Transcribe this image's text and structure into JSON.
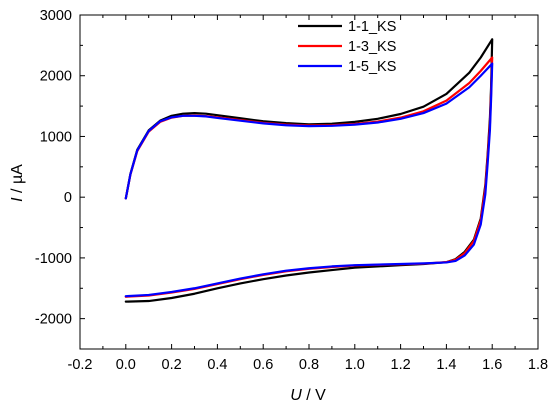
{
  "chart_data": {
    "type": "line",
    "xlabel": {
      "italic": "U",
      "rest": " / V"
    },
    "ylabel": {
      "italic": "I",
      "rest": " / µA"
    },
    "xlim": [
      -0.2,
      1.8
    ],
    "ylim": [
      -2500,
      3000
    ],
    "xticks": [
      "-0.2",
      "0.0",
      "0.2",
      "0.4",
      "0.6",
      "0.8",
      "1.0",
      "1.2",
      "1.4",
      "1.6",
      "1.8"
    ],
    "yticks": [
      "-2000",
      "-1000",
      "0",
      "1000",
      "2000",
      "3000"
    ],
    "grid": false,
    "legend_position": "top-right",
    "series": [
      {
        "name": "1-1_KS",
        "color": "#000000",
        "anodic": [
          [
            0.0,
            -20
          ],
          [
            0.02,
            380
          ],
          [
            0.05,
            780
          ],
          [
            0.1,
            1100
          ],
          [
            0.15,
            1260
          ],
          [
            0.2,
            1340
          ],
          [
            0.25,
            1375
          ],
          [
            0.3,
            1385
          ],
          [
            0.35,
            1375
          ],
          [
            0.4,
            1350
          ],
          [
            0.5,
            1300
          ],
          [
            0.6,
            1250
          ],
          [
            0.7,
            1220
          ],
          [
            0.8,
            1200
          ],
          [
            0.9,
            1210
          ],
          [
            1.0,
            1240
          ],
          [
            1.1,
            1290
          ],
          [
            1.2,
            1370
          ],
          [
            1.3,
            1490
          ],
          [
            1.4,
            1700
          ],
          [
            1.5,
            2050
          ],
          [
            1.55,
            2300
          ],
          [
            1.6,
            2600
          ]
        ],
        "cathodic": [
          [
            1.6,
            2600
          ],
          [
            1.595,
            1800
          ],
          [
            1.59,
            1300
          ],
          [
            1.58,
            700
          ],
          [
            1.57,
            200
          ],
          [
            1.55,
            -350
          ],
          [
            1.52,
            -700
          ],
          [
            1.48,
            -900
          ],
          [
            1.44,
            -1020
          ],
          [
            1.4,
            -1070
          ],
          [
            1.3,
            -1100
          ],
          [
            1.2,
            -1120
          ],
          [
            1.1,
            -1140
          ],
          [
            1.0,
            -1160
          ],
          [
            0.9,
            -1200
          ],
          [
            0.8,
            -1240
          ],
          [
            0.7,
            -1290
          ],
          [
            0.6,
            -1350
          ],
          [
            0.5,
            -1420
          ],
          [
            0.4,
            -1500
          ],
          [
            0.3,
            -1590
          ],
          [
            0.2,
            -1660
          ],
          [
            0.1,
            -1710
          ],
          [
            0.0,
            -1720
          ]
        ]
      },
      {
        "name": "1-3_KS",
        "color": "#ff0000",
        "anodic": [
          [
            0.0,
            -20
          ],
          [
            0.02,
            370
          ],
          [
            0.05,
            760
          ],
          [
            0.1,
            1080
          ],
          [
            0.15,
            1240
          ],
          [
            0.2,
            1310
          ],
          [
            0.25,
            1340
          ],
          [
            0.3,
            1345
          ],
          [
            0.35,
            1335
          ],
          [
            0.4,
            1315
          ],
          [
            0.5,
            1270
          ],
          [
            0.6,
            1225
          ],
          [
            0.7,
            1195
          ],
          [
            0.8,
            1180
          ],
          [
            0.9,
            1185
          ],
          [
            1.0,
            1205
          ],
          [
            1.1,
            1245
          ],
          [
            1.2,
            1310
          ],
          [
            1.3,
            1415
          ],
          [
            1.4,
            1590
          ],
          [
            1.5,
            1880
          ],
          [
            1.55,
            2080
          ],
          [
            1.6,
            2300
          ]
        ],
        "cathodic": [
          [
            1.6,
            2300
          ],
          [
            1.595,
            1700
          ],
          [
            1.59,
            1200
          ],
          [
            1.58,
            650
          ],
          [
            1.57,
            150
          ],
          [
            1.55,
            -380
          ],
          [
            1.52,
            -720
          ],
          [
            1.48,
            -920
          ],
          [
            1.44,
            -1030
          ],
          [
            1.4,
            -1070
          ],
          [
            1.3,
            -1095
          ],
          [
            1.2,
            -1105
          ],
          [
            1.1,
            -1115
          ],
          [
            1.0,
            -1125
          ],
          [
            0.9,
            -1150
          ],
          [
            0.8,
            -1180
          ],
          [
            0.7,
            -1220
          ],
          [
            0.6,
            -1280
          ],
          [
            0.5,
            -1350
          ],
          [
            0.4,
            -1430
          ],
          [
            0.3,
            -1510
          ],
          [
            0.2,
            -1570
          ],
          [
            0.1,
            -1620
          ],
          [
            0.0,
            -1640
          ]
        ]
      },
      {
        "name": "1-5_KS",
        "color": "#0000ff",
        "anodic": [
          [
            0.0,
            -20
          ],
          [
            0.02,
            375
          ],
          [
            0.05,
            770
          ],
          [
            0.1,
            1090
          ],
          [
            0.15,
            1250
          ],
          [
            0.2,
            1315
          ],
          [
            0.25,
            1340
          ],
          [
            0.3,
            1340
          ],
          [
            0.35,
            1330
          ],
          [
            0.4,
            1305
          ],
          [
            0.5,
            1260
          ],
          [
            0.6,
            1215
          ],
          [
            0.7,
            1185
          ],
          [
            0.8,
            1170
          ],
          [
            0.9,
            1175
          ],
          [
            1.0,
            1195
          ],
          [
            1.1,
            1230
          ],
          [
            1.2,
            1290
          ],
          [
            1.3,
            1385
          ],
          [
            1.4,
            1540
          ],
          [
            1.5,
            1810
          ],
          [
            1.55,
            2000
          ],
          [
            1.6,
            2200
          ]
        ],
        "cathodic": [
          [
            1.6,
            2200
          ],
          [
            1.595,
            1600
          ],
          [
            1.59,
            1100
          ],
          [
            1.58,
            550
          ],
          [
            1.57,
            50
          ],
          [
            1.55,
            -450
          ],
          [
            1.52,
            -780
          ],
          [
            1.48,
            -960
          ],
          [
            1.44,
            -1050
          ],
          [
            1.4,
            -1075
          ],
          [
            1.3,
            -1090
          ],
          [
            1.2,
            -1100
          ],
          [
            1.1,
            -1110
          ],
          [
            1.0,
            -1120
          ],
          [
            0.9,
            -1140
          ],
          [
            0.8,
            -1170
          ],
          [
            0.7,
            -1210
          ],
          [
            0.6,
            -1270
          ],
          [
            0.5,
            -1340
          ],
          [
            0.4,
            -1420
          ],
          [
            0.3,
            -1500
          ],
          [
            0.2,
            -1560
          ],
          [
            0.1,
            -1610
          ],
          [
            0.0,
            -1630
          ]
        ]
      }
    ]
  }
}
